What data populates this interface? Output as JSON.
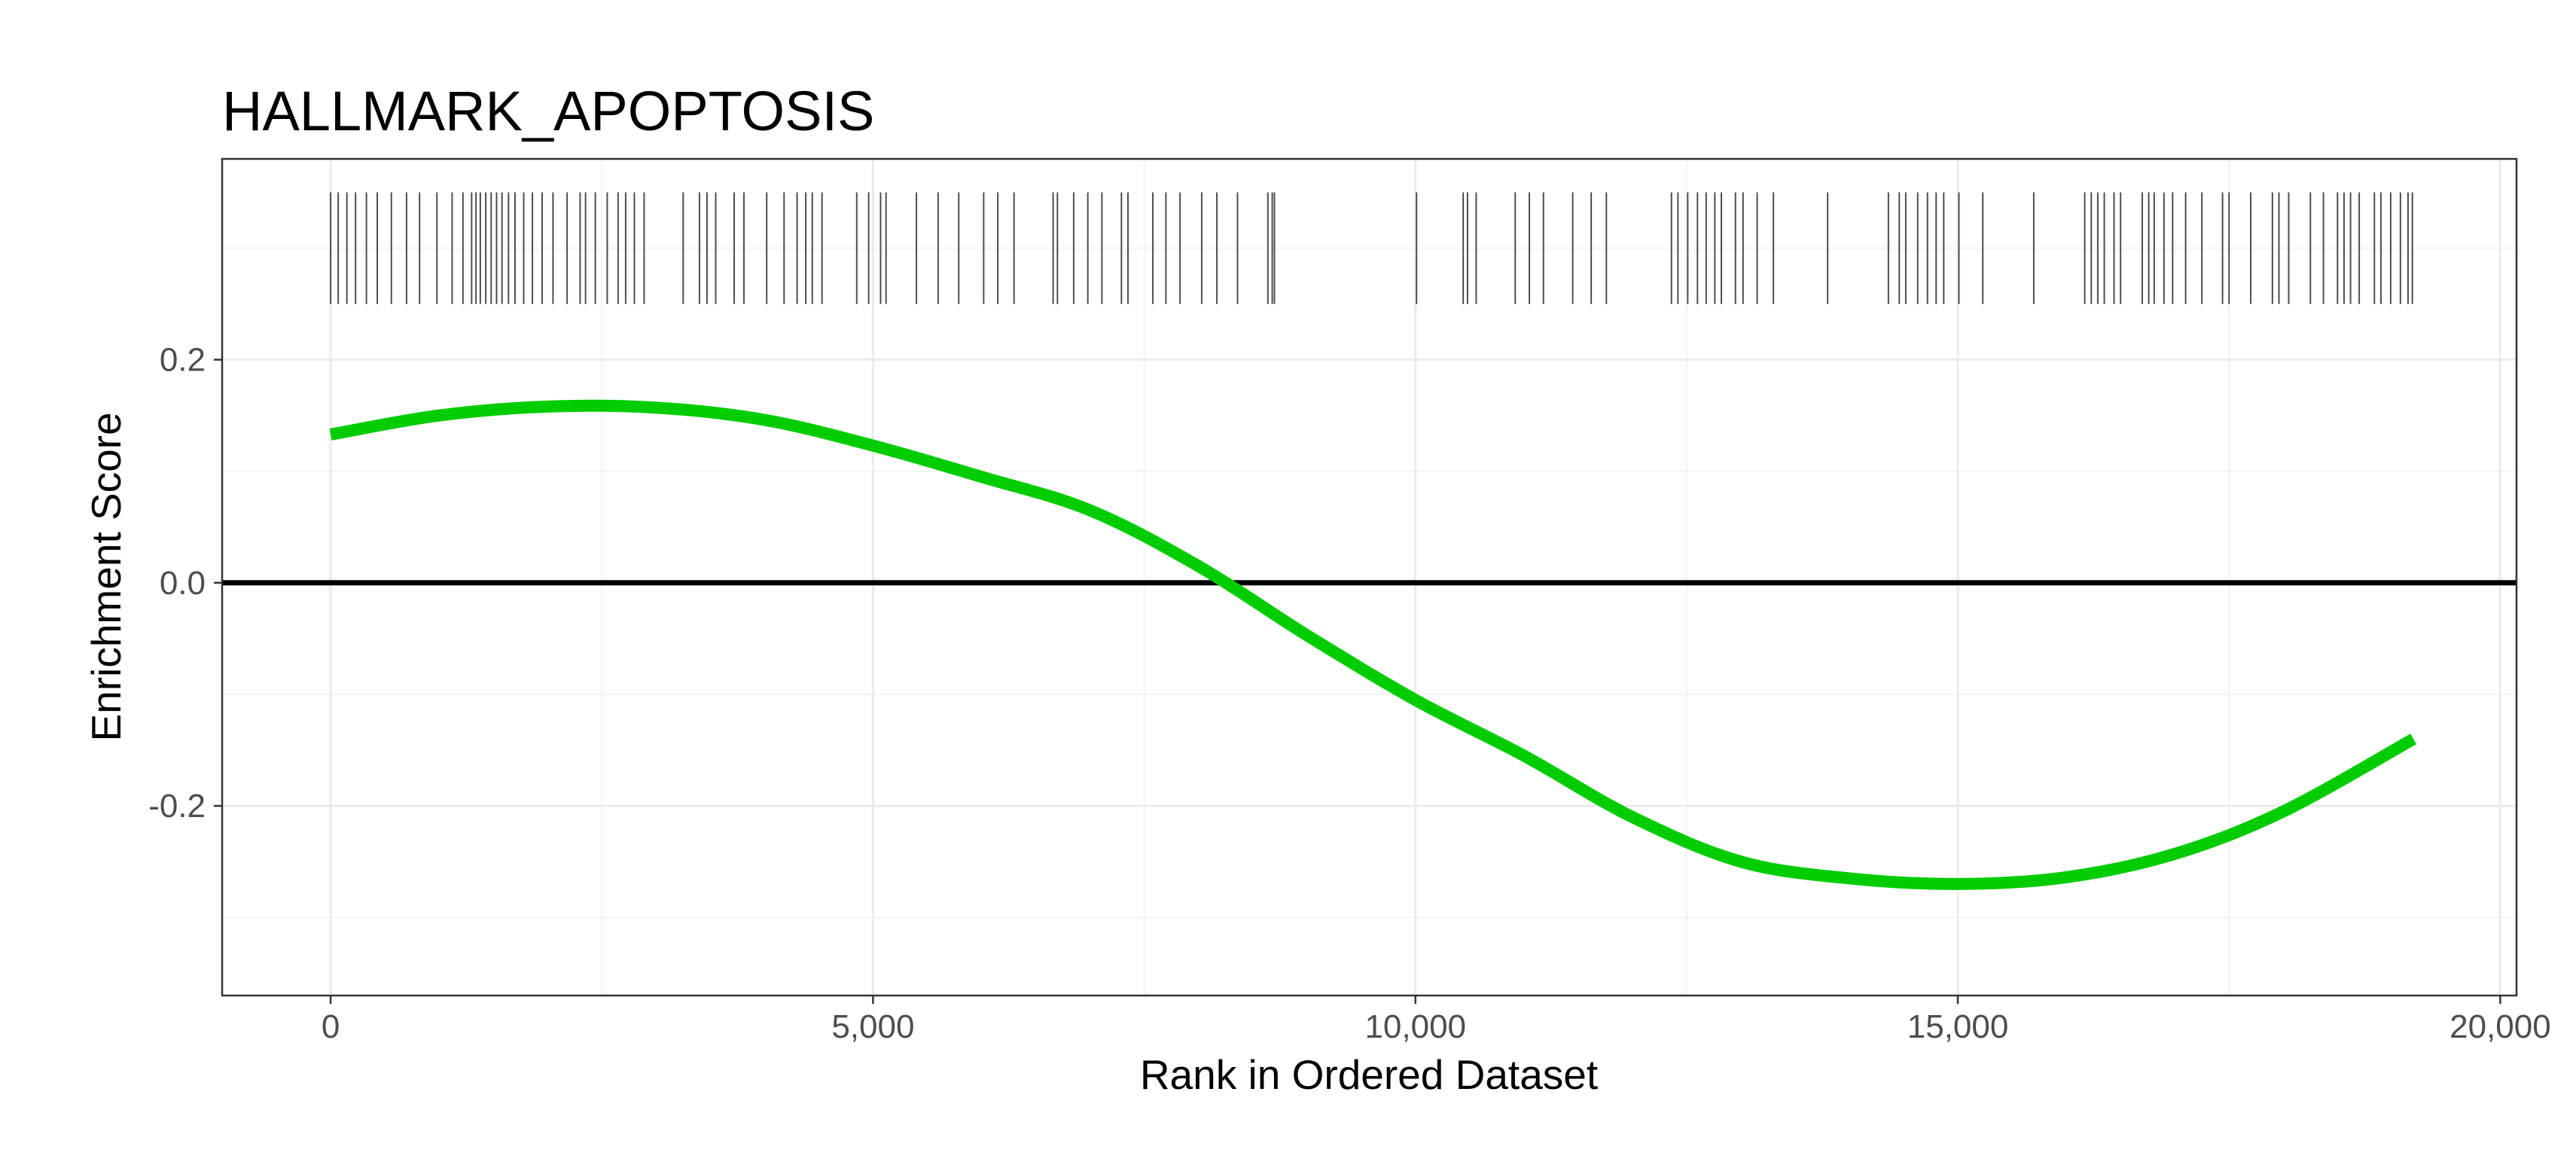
{
  "chart_data": {
    "type": "line",
    "title": "HALLMARK_APOPTOSIS",
    "xlabel": "Rank in Ordered Dataset",
    "ylabel": "Enrichment Score",
    "xlim": [
      -1000,
      20150
    ],
    "ylim": [
      -0.37,
      0.38
    ],
    "x_ticks": [
      0,
      5000,
      10000,
      15000,
      20000
    ],
    "x_tick_labels": [
      "0",
      "5,000",
      "10,000",
      "15,000",
      "20,000"
    ],
    "y_ticks": [
      -0.2,
      0.0,
      0.2
    ],
    "y_tick_labels": [
      "-0.2",
      "0.0",
      "0.2"
    ],
    "grid": true,
    "legend": "none",
    "zero_line": 0,
    "line_color": "#00cc00",
    "series": [
      {
        "x": [
          0,
          1000,
          2000,
          3000,
          4000,
          5000,
          6000,
          7000,
          8000,
          9000,
          10000,
          11000,
          12000,
          13000,
          14000,
          15000,
          16000,
          17000,
          18000,
          19200
        ],
        "y": [
          0.133,
          0.15,
          0.158,
          0.157,
          0.146,
          0.123,
          0.095,
          0.065,
          0.015,
          -0.047,
          -0.105,
          -0.155,
          -0.21,
          -0.25,
          -0.265,
          -0.27,
          -0.264,
          -0.243,
          -0.205,
          -0.14
        ]
      }
    ],
    "rug": {
      "y_range": [
        0.25,
        0.35
      ],
      "color": "#4d4d4d",
      "positions": [
        0,
        70,
        150,
        230,
        330,
        430,
        560,
        700,
        820,
        980,
        1120,
        1220,
        1300,
        1340,
        1380,
        1430,
        1480,
        1530,
        1580,
        1640,
        1700,
        1780,
        1860,
        1950,
        2050,
        2180,
        2300,
        2350,
        2440,
        2550,
        2650,
        2720,
        2800,
        2890,
        3250,
        3400,
        3470,
        3550,
        3720,
        3810,
        4020,
        4180,
        4300,
        4380,
        4440,
        4530,
        4850,
        4960,
        5070,
        5120,
        5400,
        5600,
        5790,
        6020,
        6150,
        6300,
        6660,
        6700,
        6850,
        6980,
        7110,
        7290,
        7350,
        7580,
        7700,
        7830,
        8030,
        8170,
        8360,
        8640,
        8680,
        8700,
        10010,
        10440,
        10480,
        10560,
        10920,
        11050,
        11180,
        11450,
        11620,
        11760,
        12360,
        12420,
        12510,
        12600,
        12680,
        12760,
        12820,
        12950,
        13020,
        13150,
        13300,
        13800,
        14360,
        14460,
        14520,
        14630,
        14720,
        14800,
        14870,
        15010,
        15230,
        15700,
        16170,
        16230,
        16290,
        16350,
        16440,
        16500,
        16700,
        16760,
        16810,
        16900,
        16980,
        17100,
        17250,
        17440,
        17500,
        17700,
        17900,
        17960,
        18050,
        18250,
        18370,
        18500,
        18560,
        18620,
        18700,
        18840,
        18900,
        18990,
        19080,
        19150,
        19190
      ]
    }
  }
}
